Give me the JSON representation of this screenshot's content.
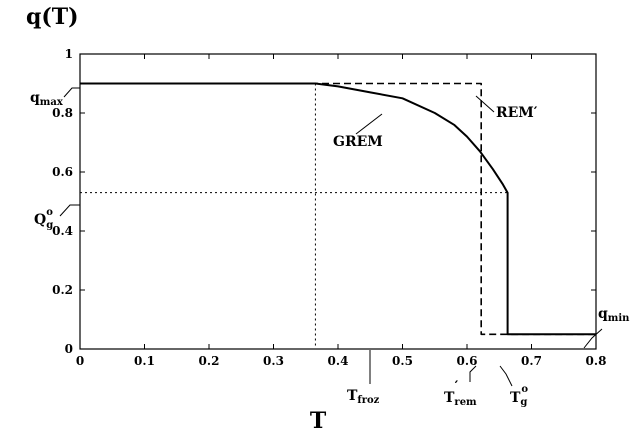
{
  "chart_data": {
    "type": "line",
    "title": "q(T)",
    "xlabel": "T",
    "ylabel": "",
    "xlim": [
      0,
      0.8
    ],
    "ylim": [
      0,
      1
    ],
    "xticks": [
      "0",
      "0.1",
      "0.2",
      "0.3",
      "0.4",
      "0.5",
      "0.6",
      "0.7",
      "0.8"
    ],
    "yticks": [
      "0",
      "0.2",
      "0.4",
      "0.6",
      "0.8",
      "1"
    ],
    "grid": false,
    "series": [
      {
        "name": "GREM",
        "style": "solid",
        "x": [
          0,
          0.365,
          0.4,
          0.45,
          0.5,
          0.55,
          0.58,
          0.6,
          0.62,
          0.64,
          0.655,
          0.663,
          0.663,
          0.8
        ],
        "y": [
          0.9,
          0.9,
          0.89,
          0.87,
          0.85,
          0.8,
          0.76,
          0.72,
          0.67,
          0.61,
          0.56,
          0.53,
          0.05,
          0.05
        ]
      },
      {
        "name": "REM′",
        "style": "dashed",
        "x": [
          0,
          0.622,
          0.622,
          0.8
        ],
        "y": [
          0.9,
          0.9,
          0.05,
          0.05
        ]
      }
    ],
    "guides": {
      "t_froz": 0.365,
      "t_rem": 0.622,
      "t_g": 0.663,
      "q_g": 0.53
    },
    "annotations": {
      "q_max": "q",
      "q_max_sub": "max",
      "q_min": "q",
      "q_min_sub": "min",
      "q_g_main": "Q",
      "q_g_sub": "g",
      "q_g_sup": "o",
      "t_froz_main": "T",
      "t_froz_sub": "froz",
      "t_rem_main": "T",
      "t_rem_sub": "rem",
      "t_rem_sup": "′",
      "t_g_main": "T",
      "t_g_sub": "g",
      "t_g_sup": "o"
    }
  }
}
